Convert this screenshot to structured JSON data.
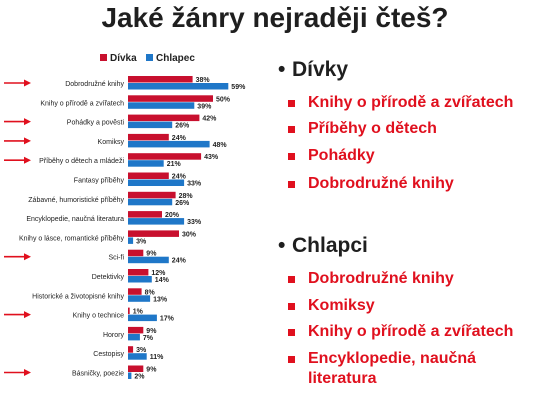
{
  "title": "Jaké žánry nejraději čteš?",
  "colors": {
    "girl": "#c8102e",
    "boy": "#1f77c8",
    "arrow": "#e0101e",
    "accent_text": "#e0101e"
  },
  "chart_data": {
    "type": "bar",
    "orientation": "horizontal",
    "legend_position": "top",
    "series": [
      {
        "name": "Dívka",
        "values": [
          38,
          50,
          42,
          24,
          43,
          24,
          28,
          20,
          30,
          9,
          12,
          8,
          1,
          9,
          3,
          9
        ]
      },
      {
        "name": "Chlapec",
        "values": [
          59,
          39,
          26,
          48,
          21,
          33,
          26,
          33,
          3,
          24,
          14,
          13,
          17,
          7,
          11,
          2
        ]
      }
    ],
    "categories": [
      "Dobrodružné knihy",
      "Knihy o přírodě a zvířatech",
      "Pohádky a pověsti",
      "Komiksy",
      "Příběhy o dětech a mládeži",
      "Fantasy příběhy",
      "Zábavné, humoristické příběhy",
      "Encyklopedie, naučná literatura",
      "Knihy o lásce, romantické příběhy",
      "Sci-fi",
      "Detektivky",
      "Historické a životopisné knihy",
      "Knihy o technice",
      "Horory",
      "Cestopisy",
      "Básničky, poezie"
    ],
    "value_suffix": "%",
    "highlighted_categories": [
      0,
      2,
      3,
      4,
      9,
      12,
      15
    ],
    "xlim": [
      0,
      70
    ]
  },
  "summary": {
    "girls": {
      "title": "Dívky",
      "items": [
        "Knihy o přírodě a zvířatech",
        "Příběhy o dětech",
        "Pohádky",
        "Dobrodružné knihy"
      ]
    },
    "boys": {
      "title": "Chlapci",
      "items": [
        "Dobrodružné knihy",
        "Komiksy",
        "Knihy o přírodě a zvířatech",
        "Encyklopedie, naučná literatura"
      ]
    }
  }
}
